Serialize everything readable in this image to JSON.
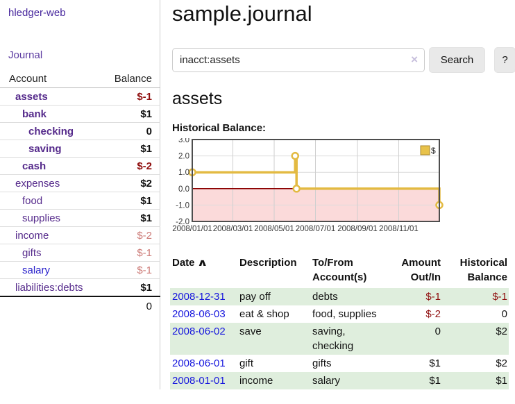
{
  "app": {
    "title": "hledger-web"
  },
  "sidebar": {
    "journal_link": "Journal",
    "accounts_table": {
      "headers": {
        "account": "Account",
        "balance": "Balance"
      },
      "rows": [
        {
          "name": "assets",
          "level": 1,
          "bold": true,
          "balance": "$-1",
          "balance_style": "neg-strong"
        },
        {
          "name": "bank",
          "level": 2,
          "bold": true,
          "balance": "$1",
          "balance_style": "pos"
        },
        {
          "name": "checking",
          "level": 3,
          "bold": true,
          "balance": "0",
          "balance_style": "pos"
        },
        {
          "name": "saving",
          "level": 3,
          "bold": true,
          "balance": "$1",
          "balance_style": "pos"
        },
        {
          "name": "cash",
          "level": 2,
          "bold": true,
          "balance": "$-2",
          "balance_style": "neg-strong"
        },
        {
          "name": "expenses",
          "level": 1,
          "bold": false,
          "balance": "$2",
          "balance_style": "pos"
        },
        {
          "name": "food",
          "level": 2,
          "bold": false,
          "balance": "$1",
          "balance_style": "pos"
        },
        {
          "name": "supplies",
          "level": 2,
          "bold": false,
          "balance": "$1",
          "balance_style": "pos"
        },
        {
          "name": "income",
          "level": 1,
          "bold": false,
          "balance": "$-2",
          "balance_style": "neg-faded"
        },
        {
          "name": "gifts",
          "level": 2,
          "bold": false,
          "balance": "$-1",
          "balance_style": "neg-faded"
        },
        {
          "name": "salary",
          "level": 2,
          "bold": false,
          "balance": "$-1",
          "balance_style": "neg-faded",
          "link_style": "blue"
        },
        {
          "name": "liabilities:debts",
          "level": 1,
          "bold": false,
          "balance": "$1",
          "balance_style": "pos"
        }
      ],
      "total": "0"
    }
  },
  "header": {
    "title": "sample.journal"
  },
  "search": {
    "value": "inacct:assets",
    "clear_icon": "×",
    "button_label": "Search",
    "help_label": "?"
  },
  "main": {
    "account_heading": "assets",
    "chart_label": "Historical Balance:"
  },
  "chart_data": {
    "type": "line",
    "title": "Historical Balance",
    "step": true,
    "legend": {
      "label": "$",
      "position": "top-right",
      "swatch_color": "#e8c24a"
    },
    "series": [
      {
        "name": "$",
        "color": "#e3ba42",
        "points": [
          {
            "date": "2008-01-01",
            "day": 0,
            "value": 1
          },
          {
            "date": "2008-06-01",
            "day": 152,
            "value": 2
          },
          {
            "date": "2008-06-03",
            "day": 154,
            "value": 0
          },
          {
            "date": "2008-12-31",
            "day": 365,
            "value": -1
          }
        ]
      }
    ],
    "x_ticks": [
      {
        "label": "2008/01/01",
        "day": 0
      },
      {
        "label": "2008/03/01",
        "day": 60
      },
      {
        "label": "2008/05/01",
        "day": 121
      },
      {
        "label": "2008/07/01",
        "day": 182
      },
      {
        "label": "2008/09/01",
        "day": 244
      },
      {
        "label": "2008/11/01",
        "day": 305
      }
    ],
    "y_ticks": [
      "3.0",
      "2.0",
      "1.0",
      "0.0",
      "-1.0",
      "-2.0"
    ],
    "ylim": [
      -2,
      3
    ],
    "xlim_days": [
      0,
      365
    ],
    "grid": true,
    "negative_region_color": "#fbdada",
    "zero_line_color": "#8b0000",
    "border_color": "#4d4d4d"
  },
  "transactions": {
    "headers": {
      "date": "Date",
      "sort_icon": "∧",
      "description": "Description",
      "accounts_line1": "To/From",
      "accounts_line2": "Account(s)",
      "amount_line1": "Amount",
      "amount_line2": "Out/In",
      "balance_line1": "Historical",
      "balance_line2": "Balance"
    },
    "rows": [
      {
        "date": "2008-12-31",
        "description": "pay off",
        "accounts": "debts",
        "amount": "$-1",
        "amount_neg": true,
        "balance": "$-1",
        "balance_neg": true
      },
      {
        "date": "2008-06-03",
        "description": "eat & shop",
        "accounts": "food, supplies",
        "amount": "$-2",
        "amount_neg": true,
        "balance": "0",
        "balance_neg": false
      },
      {
        "date": "2008-06-02",
        "description": "save",
        "accounts": "saving,\nchecking",
        "amount": "0",
        "amount_neg": false,
        "balance": "$2",
        "balance_neg": false
      },
      {
        "date": "2008-06-01",
        "description": "gift",
        "accounts": "gifts",
        "amount": "$1",
        "amount_neg": false,
        "balance": "$2",
        "balance_neg": false
      },
      {
        "date": "2008-01-01",
        "description": "income",
        "accounts": "salary",
        "amount": "$1",
        "amount_neg": false,
        "balance": "$1",
        "balance_neg": false
      }
    ]
  },
  "colors": {
    "link_purple": "#552a8b",
    "link_blue": "#1717dd",
    "negative_strong": "#8f0e0e",
    "negative_faded": "#cc7a76",
    "row_green": "#dfeedd",
    "chart_line": "#e3ba42",
    "chart_negative_fill": "#fbdada",
    "chart_zero_line": "#8b0000"
  }
}
